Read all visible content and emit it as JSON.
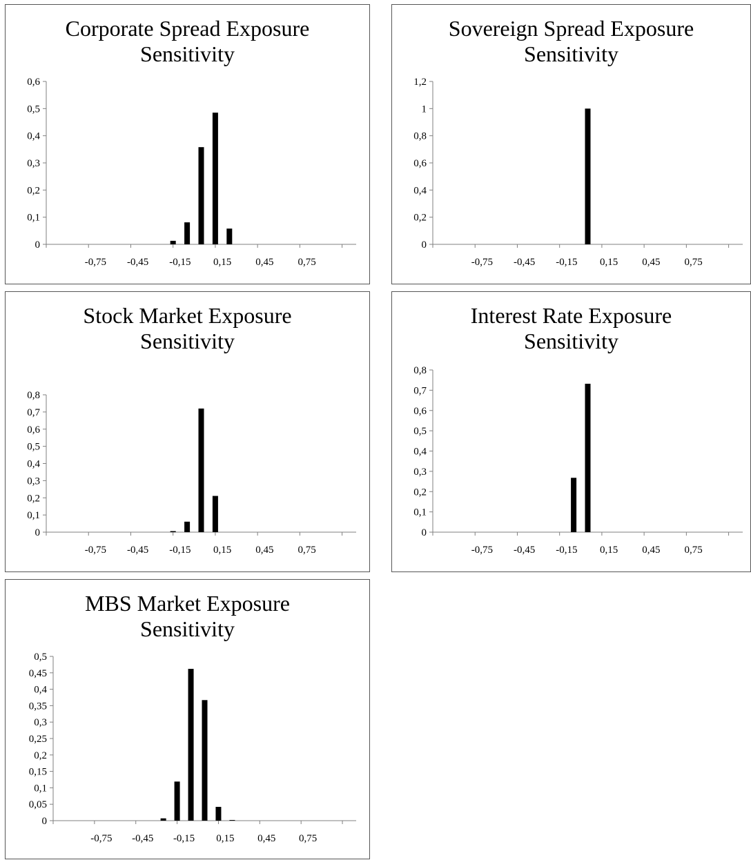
{
  "chart_data": [
    {
      "type": "bar",
      "title_line1": "Corporate Spread Exposure",
      "title_line2": "Sensitivity",
      "yticks": [
        "0",
        "0,1",
        "0,2",
        "0,3",
        "0,4",
        "0,5",
        "0,6"
      ],
      "ylim": [
        0,
        0.6
      ],
      "xticks": [
        "-0,75",
        "-0,45",
        "-0,15",
        "0,15",
        "0,45",
        "0,75"
      ],
      "x": [
        -0.2,
        -0.1,
        0.0,
        0.1,
        0.2
      ],
      "values": [
        0.013,
        0.081,
        0.358,
        0.485,
        0.058
      ],
      "color": "#000000"
    },
    {
      "type": "bar",
      "title_line1": "Sovereign Spread Exposure",
      "title_line2": "Sensitivity",
      "yticks": [
        "0",
        "0,2",
        "0,4",
        "0,6",
        "0,8",
        "1",
        "1,2"
      ],
      "ylim": [
        0,
        1.2
      ],
      "xticks": [
        "-0,75",
        "-0,45",
        "-0,15",
        "0,15",
        "0,45",
        "0,75"
      ],
      "x": [
        0.0
      ],
      "values": [
        1.0
      ],
      "color": "#000000"
    },
    {
      "type": "bar",
      "title_line1": "Stock Market Exposure",
      "title_line2": "Sensitivity",
      "yticks": [
        "0",
        "0,1",
        "0,2",
        "0,3",
        "0,4",
        "0,5",
        "0,6",
        "0,7",
        "0,8"
      ],
      "ylim": [
        0,
        0.8
      ],
      "xticks": [
        "-0,75",
        "-0,45",
        "-0,15",
        "0,15",
        "0,45",
        "0,75"
      ],
      "x": [
        -0.2,
        -0.1,
        0.0,
        0.1
      ],
      "values": [
        0.006,
        0.061,
        0.72,
        0.211
      ],
      "color": "#000000"
    },
    {
      "type": "bar",
      "title_line1": "Interest Rate Exposure",
      "title_line2": "Sensitivity",
      "yticks": [
        "0",
        "0,1",
        "0,2",
        "0,3",
        "0,4",
        "0,5",
        "0,6",
        "0,7",
        "0,8"
      ],
      "ylim": [
        0,
        0.8
      ],
      "xticks": [
        "-0,75",
        "-0,45",
        "-0,15",
        "0,15",
        "0,45",
        "0,75"
      ],
      "x": [
        -0.1,
        0.0
      ],
      "values": [
        0.268,
        0.732
      ],
      "color": "#000000"
    },
    {
      "type": "bar",
      "title_line1": "MBS Market Exposure",
      "title_line2": "Sensitivity",
      "yticks": [
        "0",
        "0,05",
        "0,1",
        "0,15",
        "0,2",
        "0,25",
        "0,3",
        "0,35",
        "0,4",
        "0,45",
        "0,5"
      ],
      "ylim": [
        0,
        0.5
      ],
      "xticks": [
        "-0,75",
        "-0,45",
        "-0,15",
        "0,15",
        "0,45",
        "0,75"
      ],
      "x": [
        -0.3,
        -0.2,
        -0.1,
        0.0,
        0.1,
        0.2
      ],
      "values": [
        0.007,
        0.119,
        0.462,
        0.367,
        0.042,
        0.002
      ],
      "color": "#000000"
    }
  ]
}
